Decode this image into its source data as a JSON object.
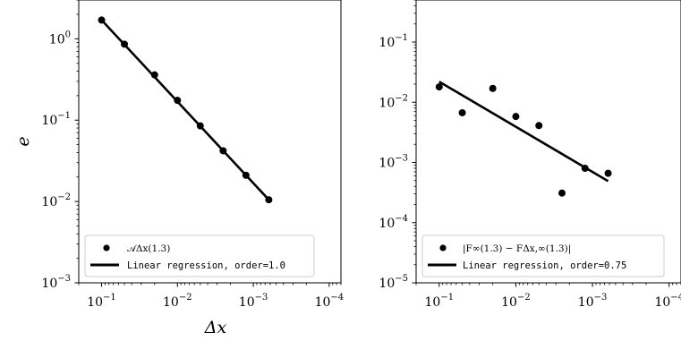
{
  "chart_data": [
    {
      "type": "scatter",
      "title": "",
      "xlabel": "Δx",
      "ylabel": "e",
      "xscale": "log",
      "yscale": "log",
      "xaxis_inverted": true,
      "xlim": [
        0.2,
        7e-05
      ],
      "ylim": [
        0.001,
        3.0
      ],
      "xticks": [
        {
          "value": 0.1,
          "base": "10",
          "exp": "−1"
        },
        {
          "value": 0.01,
          "base": "10",
          "exp": "−2"
        },
        {
          "value": 0.001,
          "base": "10",
          "exp": "−3"
        },
        {
          "value": 0.0001,
          "base": "10",
          "exp": "−4"
        }
      ],
      "yticks": [
        {
          "value": 1,
          "base": "10",
          "exp": "0"
        },
        {
          "value": 0.1,
          "base": "10",
          "exp": "−1"
        },
        {
          "value": 0.01,
          "base": "10",
          "exp": "−2"
        },
        {
          "value": 0.001,
          "base": "10",
          "exp": "−3"
        }
      ],
      "series": [
        {
          "name": "𝒜Δx(1.3)",
          "kind": "points",
          "x": [
            0.1,
            0.05,
            0.02,
            0.01,
            0.005,
            0.0025,
            0.00125,
            0.000625
          ],
          "y": [
            1.7,
            0.86,
            0.36,
            0.175,
            0.085,
            0.042,
            0.021,
            0.0105
          ]
        },
        {
          "name": "Linear regression, order=1.0",
          "kind": "line",
          "x": [
            0.1,
            0.000625
          ],
          "y": [
            1.7,
            0.0105
          ]
        }
      ],
      "legend": {
        "placement": "lower-left"
      }
    },
    {
      "type": "scatter",
      "title": "",
      "xlabel": "",
      "ylabel": "",
      "xscale": "log",
      "yscale": "log",
      "xaxis_inverted": true,
      "xlim": [
        0.2,
        7e-05
      ],
      "ylim": [
        1e-05,
        0.5
      ],
      "xticks": [
        {
          "value": 0.1,
          "base": "10",
          "exp": "−1"
        },
        {
          "value": 0.01,
          "base": "10",
          "exp": "−2"
        },
        {
          "value": 0.001,
          "base": "10",
          "exp": "−3"
        },
        {
          "value": 0.0001,
          "base": "10",
          "exp": "−4"
        }
      ],
      "yticks": [
        {
          "value": 0.1,
          "base": "10",
          "exp": "−1"
        },
        {
          "value": 0.01,
          "base": "10",
          "exp": "−2"
        },
        {
          "value": 0.001,
          "base": "10",
          "exp": "−3"
        },
        {
          "value": 0.0001,
          "base": "10",
          "exp": "−4"
        },
        {
          "value": 1e-05,
          "base": "10",
          "exp": "−5"
        }
      ],
      "series": [
        {
          "name": "|F∞(1.3) − FΔx,∞(1.3)|",
          "kind": "points",
          "x": [
            0.1,
            0.05,
            0.02,
            0.01,
            0.005,
            0.0025,
            0.00125,
            0.000625
          ],
          "y": [
            0.018,
            0.0067,
            0.017,
            0.0058,
            0.0041,
            0.00031,
            0.0008,
            0.00066
          ]
        },
        {
          "name": "Linear regression, order=0.75",
          "kind": "line",
          "x": [
            0.1,
            0.000625
          ],
          "y": [
            0.022,
            0.00049
          ]
        }
      ],
      "legend": {
        "placement": "lower-left"
      }
    }
  ]
}
